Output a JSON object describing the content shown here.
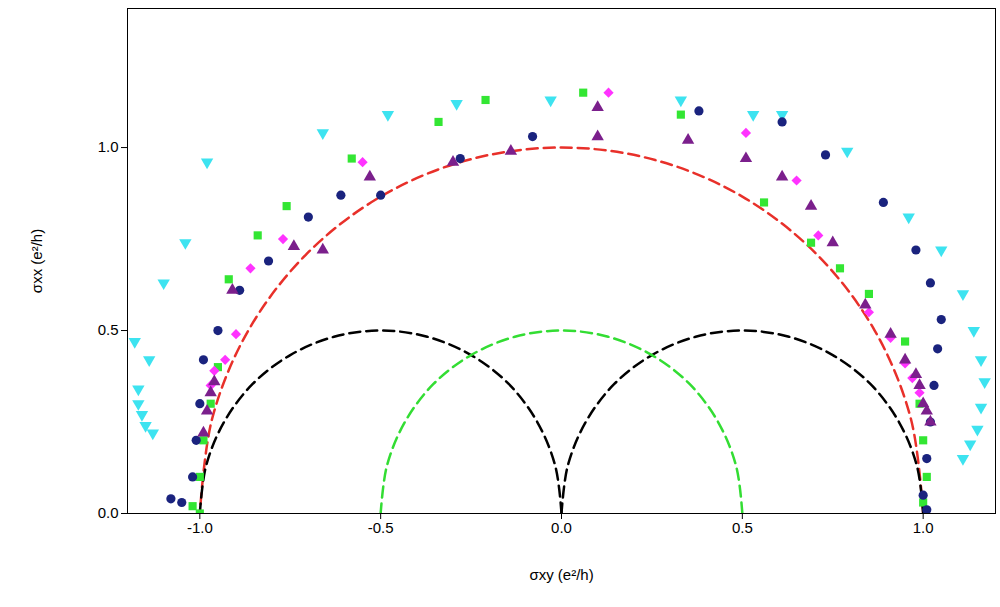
{
  "chart_data": {
    "type": "scatter",
    "x_label": "σxy (e²/h)",
    "y_label": "σxx (e²/h)",
    "xlim": [
      -1.2,
      1.2
    ],
    "ylim": [
      0,
      1.38
    ],
    "xticks": [
      {
        "value": -1,
        "label": "-1.0"
      },
      {
        "value": -0.5,
        "label": "-0.5"
      },
      {
        "value": 0,
        "label": "0.0"
      },
      {
        "value": 0.5,
        "label": "0.5"
      },
      {
        "value": 1,
        "label": "1.0"
      }
    ],
    "yticks": [
      {
        "value": 0,
        "label": "0.0"
      },
      {
        "value": 0.5,
        "label": "0.5"
      },
      {
        "value": 1,
        "label": "1.0"
      }
    ],
    "grid": false,
    "series": [
      {
        "type": "line",
        "color": "#e8302a",
        "line_style": "dashed",
        "x": [
          1,
          0.966,
          0.866,
          0.707,
          0.5,
          0.259,
          0,
          -0.259,
          -0.5,
          -0.707,
          -0.866,
          -0.966,
          -1
        ],
        "values": [
          0,
          0.259,
          0.5,
          0.707,
          0.866,
          0.966,
          1,
          0.966,
          0.866,
          0.707,
          0.5,
          0.259,
          0
        ]
      },
      {
        "type": "line",
        "color": "#000000",
        "line_style": "dashed",
        "x": [
          0,
          -0.017,
          -0.067,
          -0.146,
          -0.25,
          -0.371,
          -0.5,
          -0.629,
          -0.75,
          -0.854,
          -0.933,
          -0.983,
          -1
        ],
        "values": [
          0,
          0.129,
          0.25,
          0.354,
          0.433,
          0.483,
          0.5,
          0.483,
          0.433,
          0.354,
          0.25,
          0.129,
          0
        ]
      },
      {
        "type": "line",
        "color": "#000000",
        "line_style": "dashed",
        "x": [
          1,
          0.983,
          0.933,
          0.854,
          0.75,
          0.629,
          0.5,
          0.371,
          0.25,
          0.146,
          0.067,
          0.017,
          0
        ],
        "values": [
          0,
          0.129,
          0.25,
          0.354,
          0.433,
          0.483,
          0.5,
          0.483,
          0.433,
          0.354,
          0.25,
          0.129,
          0
        ]
      },
      {
        "type": "line",
        "color": "#33dd33",
        "line_style": "dashed",
        "x": [
          0.5,
          0.483,
          0.433,
          0.354,
          0.25,
          0.129,
          0,
          -0.129,
          -0.25,
          -0.354,
          -0.433,
          -0.483,
          -0.5
        ],
        "values": [
          0,
          0.129,
          0.25,
          0.354,
          0.433,
          0.483,
          0.5,
          0.483,
          0.433,
          0.354,
          0.25,
          0.129,
          0
        ]
      },
      {
        "type": "scatter",
        "color": "#3de3f0",
        "marker": "triangle-down",
        "x": [
          -1.13,
          -1.15,
          -1.16,
          -1.17,
          -1.17,
          -1.18,
          -1.14,
          -1.1,
          -1.04,
          -0.98,
          -0.66,
          -0.48,
          -0.29,
          -0.03,
          0.33,
          0.53,
          0.61,
          0.79,
          0.96,
          1.05,
          1.11,
          1.14,
          1.16,
          1.17,
          1.16,
          1.15,
          1.13,
          1.11
        ],
        "values": [
          0.22,
          0.24,
          0.27,
          0.3,
          0.34,
          0.47,
          0.42,
          0.63,
          0.74,
          0.96,
          1.04,
          1.09,
          1.12,
          1.13,
          1.13,
          1.09,
          1.09,
          0.99,
          0.81,
          0.72,
          0.6,
          0.5,
          0.42,
          0.36,
          0.29,
          0.23,
          0.19,
          0.15
        ]
      },
      {
        "type": "scatter",
        "color": "#33e633",
        "marker": "square",
        "x": [
          -1.0,
          -1.02,
          -1.0,
          -0.99,
          -0.97,
          -0.95,
          -0.92,
          -0.84,
          -0.76,
          -0.58,
          -0.34,
          -0.21,
          0.06,
          0.33,
          0.56,
          0.69,
          0.77,
          0.85,
          0.95,
          0.99,
          1.0,
          1.01,
          1.0
        ],
        "values": [
          0.0,
          0.02,
          0.1,
          0.2,
          0.3,
          0.4,
          0.64,
          0.76,
          0.84,
          0.97,
          1.07,
          1.13,
          1.15,
          1.09,
          0.85,
          0.74,
          0.67,
          0.6,
          0.47,
          0.3,
          0.2,
          0.1,
          0.03
        ]
      },
      {
        "type": "scatter",
        "color": "#ff33ff",
        "marker": "diamond",
        "x": [
          -0.97,
          -0.96,
          -0.93,
          -0.9,
          -0.86,
          -0.77,
          -0.55,
          0.13,
          0.51,
          0.65,
          0.71,
          0.85,
          0.91,
          0.95,
          0.97,
          0.99
        ],
        "values": [
          0.35,
          0.39,
          0.42,
          0.49,
          0.67,
          0.75,
          0.96,
          1.15,
          1.04,
          0.91,
          0.76,
          0.55,
          0.48,
          0.41,
          0.37,
          0.33
        ]
      },
      {
        "type": "scatter",
        "color": "#1a237e",
        "marker": "circle",
        "x": [
          -1.08,
          -1.05,
          -1.02,
          -1.01,
          -1.0,
          -0.99,
          -0.95,
          -0.89,
          -0.81,
          -0.7,
          -0.61,
          -0.5,
          -0.28,
          -0.08,
          0.38,
          0.61,
          0.73,
          0.89,
          0.98,
          1.02,
          1.05,
          1.04,
          1.03,
          1.02,
          1.01,
          1.0,
          1.01
        ],
        "values": [
          0.04,
          0.03,
          0.1,
          0.2,
          0.3,
          0.42,
          0.5,
          0.61,
          0.69,
          0.81,
          0.87,
          0.87,
          0.97,
          1.03,
          1.1,
          1.07,
          0.98,
          0.85,
          0.72,
          0.63,
          0.53,
          0.45,
          0.35,
          0.25,
          0.15,
          0.05,
          0.01
        ]
      },
      {
        "type": "scatter",
        "color": "#7b1f8c",
        "marker": "triangle",
        "x": [
          -0.99,
          -0.98,
          -0.97,
          -0.96,
          -0.91,
          -0.74,
          -0.66,
          -0.53,
          -0.3,
          -0.14,
          0.1,
          0.1,
          0.35,
          0.51,
          0.61,
          0.69,
          0.75,
          0.84,
          0.91,
          0.95,
          0.98,
          0.99,
          1.0,
          1.01,
          1.02
        ],
        "values": [
          0.22,
          0.28,
          0.33,
          0.36,
          0.61,
          0.73,
          0.72,
          0.92,
          0.96,
          0.99,
          1.03,
          1.11,
          1.02,
          0.97,
          0.92,
          0.84,
          0.74,
          0.57,
          0.49,
          0.42,
          0.38,
          0.35,
          0.3,
          0.28,
          0.25
        ]
      }
    ]
  }
}
